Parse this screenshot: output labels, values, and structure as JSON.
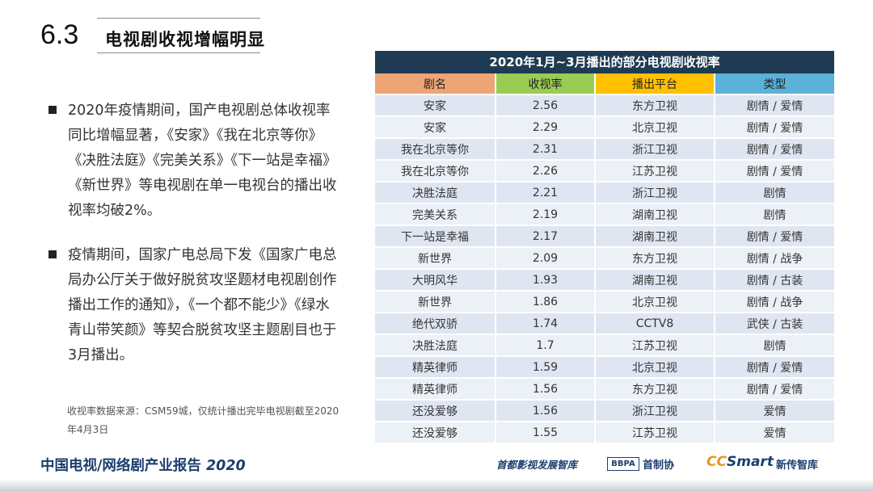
{
  "header": {
    "number": "6.3",
    "title": "电视剧收视增幅明显"
  },
  "bullets": [
    {
      "text": "2020年疫情期间，国产电视剧总体收视率同比增幅显著，《安家》《我在北京等你》《决胜法庭》《完美关系》《下一站是幸福》《新世界》等电视剧在单一电视台的播出收视率均破2%。"
    },
    {
      "text": "疫情期间，国家广电总局下发《国家广电总局办公厅关于做好脱贫攻坚题材电视剧创作播出工作的通知》，《一个都不能少》《绿水青山带笑颜》等契合脱贫攻坚主题剧目也于3月播出。"
    }
  ],
  "source_note": "收视率数据来源：CSM59城，仅统计播出完毕电视剧截至2020年4月3日",
  "table": {
    "title": "2020年1月~3月播出的部分电视剧收视率",
    "headers": [
      "剧名",
      "收视率",
      "播出平台",
      "类型"
    ],
    "header_colors": [
      "#efa475",
      "#99cc53",
      "#ffc000",
      "#5cb1d8"
    ],
    "rows": [
      [
        "安家",
        "2.56",
        "东方卫视",
        "剧情 / 爱情"
      ],
      [
        "安家",
        "2.29",
        "北京卫视",
        "剧情 / 爱情"
      ],
      [
        "我在北京等你",
        "2.31",
        "浙江卫视",
        "剧情 / 爱情"
      ],
      [
        "我在北京等你",
        "2.26",
        "江苏卫视",
        "剧情 / 爱情"
      ],
      [
        "决胜法庭",
        "2.21",
        "浙江卫视",
        "剧情"
      ],
      [
        "完美关系",
        "2.19",
        "湖南卫视",
        "剧情"
      ],
      [
        "下一站是幸福",
        "2.17",
        "湖南卫视",
        "剧情 / 爱情"
      ],
      [
        "新世界",
        "2.09",
        "东方卫视",
        "剧情 / 战争"
      ],
      [
        "大明风华",
        "1.93",
        "湖南卫视",
        "剧情 / 古装"
      ],
      [
        "新世界",
        "1.86",
        "北京卫视",
        "剧情 / 战争"
      ],
      [
        "绝代双骄",
        "1.74",
        "CCTV8",
        "武侠 / 古装"
      ],
      [
        "决胜法庭",
        "1.7",
        "江苏卫视",
        "剧情"
      ],
      [
        "精英律师",
        "1.59",
        "北京卫视",
        "剧情 / 爱情"
      ],
      [
        "精英律师",
        "1.56",
        "东方卫视",
        "剧情 / 爱情"
      ],
      [
        "还没爱够",
        "1.56",
        "浙江卫视",
        "爱情"
      ],
      [
        "还没爱够",
        "1.55",
        "江苏卫视",
        "爱情"
      ]
    ]
  },
  "footer": {
    "title": "中国电视/网络剧产业报告",
    "year": "2020",
    "logos": {
      "think_tank": "首都影视发展智库",
      "bbpa": "BBPA",
      "association": "首制协",
      "ccsmart_cc": "CC",
      "ccsmart_smart": "Smart",
      "xinchuan": "新传智库"
    }
  }
}
